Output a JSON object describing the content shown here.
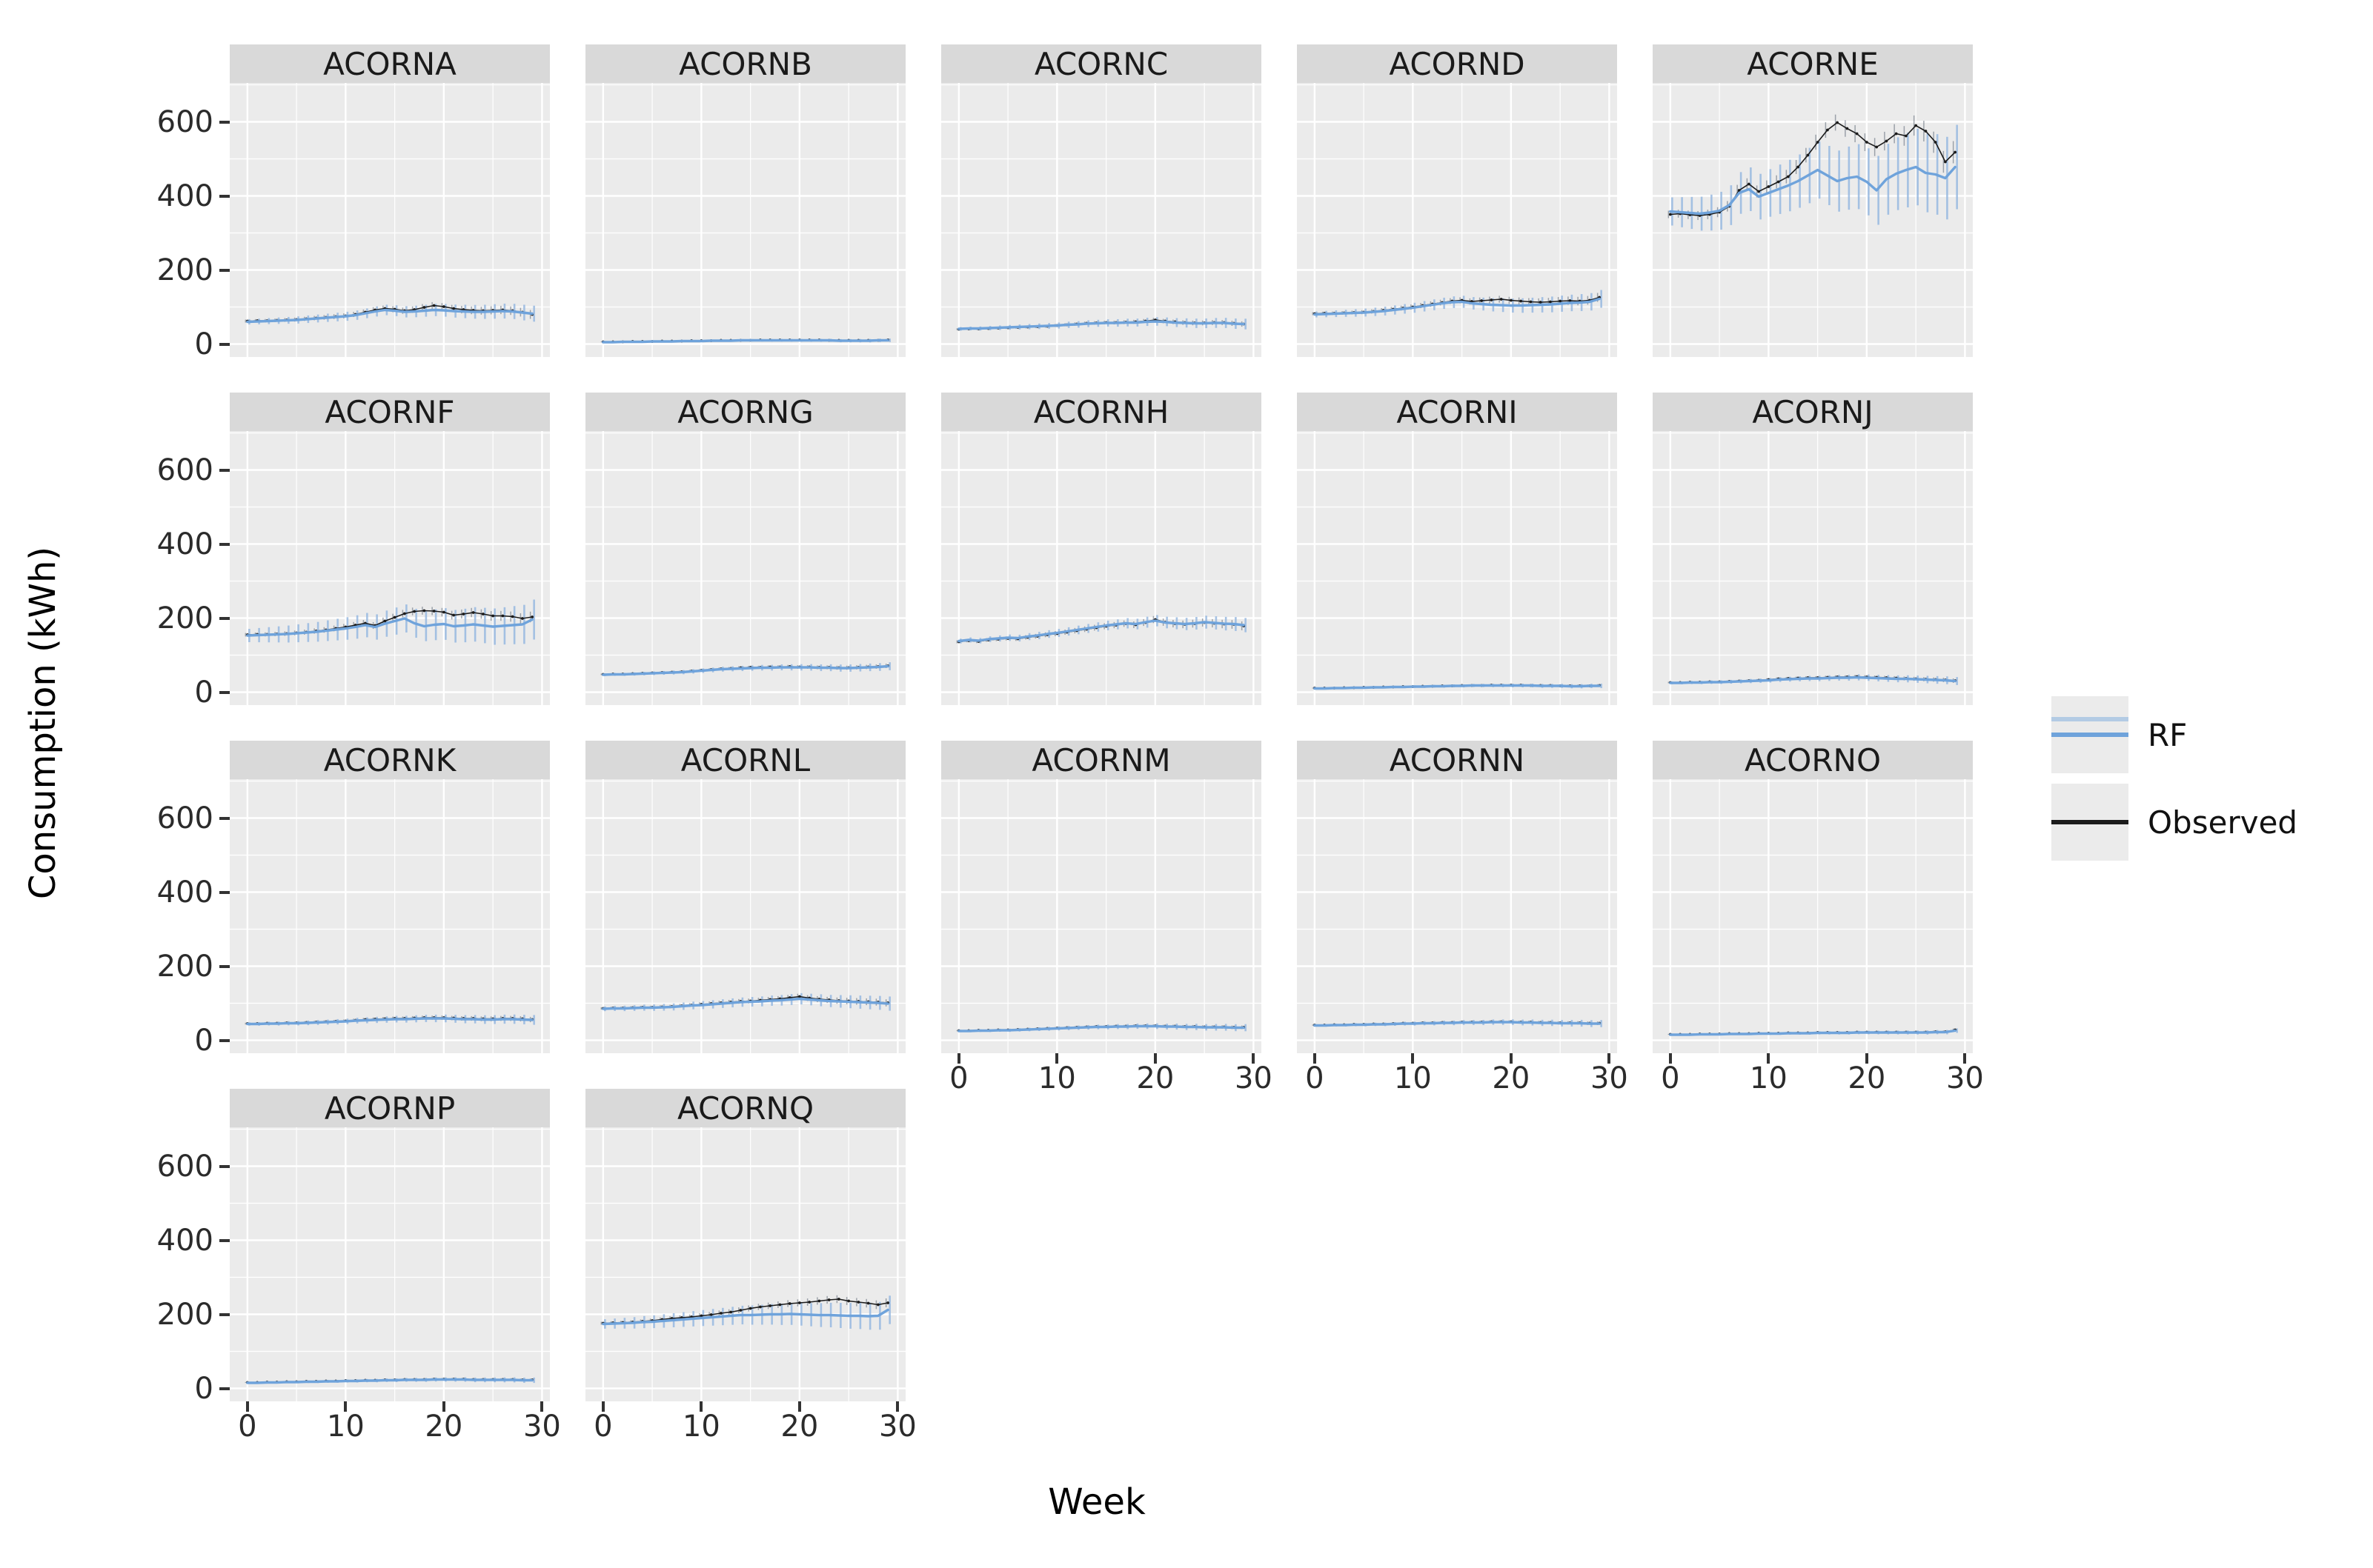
{
  "figure": {
    "x_axis_title": "Week",
    "y_axis_title": "Consumption (kWh)"
  },
  "legend": {
    "items": [
      {
        "label": "RF",
        "color": "#6FA3DB"
      },
      {
        "label": "Observed",
        "color": "#1B1B1B"
      }
    ]
  },
  "colors": {
    "panel_bg": "#EBEBEB",
    "strip_bg": "#D9D9D9",
    "grid": "#FFFFFF",
    "rf_line": "#6FA3DB",
    "rf_errbar": "rgba(150,185,225,0.85)",
    "observed_line": "#1B1B1B",
    "observed_errbar": "rgba(90,100,115,0.55)",
    "tick_text": "#2B2B2B"
  },
  "chart_data": {
    "type": "line",
    "title": "",
    "xlabel": "Week",
    "ylabel": "Consumption (kWh)",
    "facet_layout": {
      "columns": 5,
      "rows": 4
    },
    "x": [
      0,
      1,
      2,
      3,
      4,
      5,
      6,
      7,
      8,
      9,
      10,
      11,
      12,
      13,
      14,
      15,
      16,
      17,
      18,
      19,
      20,
      21,
      22,
      23,
      24,
      25,
      26,
      27,
      28,
      29
    ],
    "xlim": [
      0,
      30
    ],
    "ylim": [
      0,
      650
    ],
    "x_ticks": [
      0,
      10,
      20,
      30
    ],
    "y_ticks": [
      0,
      200,
      400,
      600
    ],
    "x_minor_ticks": [
      5,
      15,
      25
    ],
    "y_minor_ticks": [
      100,
      300,
      500,
      700
    ],
    "grid": true,
    "legend_position": "right",
    "series_names": [
      "RF",
      "Observed"
    ],
    "panels": [
      {
        "name": "ACORNA",
        "rf": [
          60,
          61,
          62,
          63,
          64,
          65,
          67,
          69,
          71,
          73,
          75,
          78,
          83,
          88,
          92,
          90,
          87,
          88,
          90,
          92,
          91,
          89,
          88,
          87,
          87,
          88,
          89,
          88,
          85,
          82
        ],
        "observed": [
          62,
          63,
          63,
          64,
          65,
          66,
          68,
          70,
          72,
          74,
          76,
          80,
          86,
          92,
          96,
          94,
          90,
          93,
          99,
          104,
          101,
          96,
          93,
          91,
          90,
          91,
          92,
          90,
          86,
          80
        ],
        "rf_err": 18,
        "obs_err": 10
      },
      {
        "name": "ACORNB",
        "rf": [
          5,
          5,
          6,
          6,
          6,
          7,
          7,
          7,
          8,
          8,
          8,
          9,
          9,
          9,
          10,
          10,
          10,
          10,
          10,
          10,
          10,
          10,
          10,
          10,
          9,
          9,
          9,
          9,
          10,
          10
        ],
        "observed": [
          6,
          6,
          6,
          7,
          7,
          7,
          8,
          8,
          8,
          9,
          9,
          9,
          10,
          10,
          10,
          10,
          11,
          11,
          11,
          11,
          11,
          11,
          11,
          10,
          10,
          10,
          10,
          10,
          10,
          11
        ],
        "rf_err": 4,
        "obs_err": 2
      },
      {
        "name": "ACORNC",
        "rf": [
          41,
          42,
          42,
          43,
          44,
          45,
          46,
          47,
          48,
          49,
          50,
          52,
          53,
          55,
          56,
          57,
          57,
          58,
          58,
          60,
          61,
          60,
          58,
          57,
          56,
          56,
          57,
          57,
          55,
          54
        ],
        "observed": [
          40,
          41,
          41,
          42,
          43,
          44,
          45,
          46,
          47,
          48,
          50,
          52,
          54,
          56,
          57,
          58,
          58,
          59,
          60,
          62,
          65,
          62,
          60,
          58,
          57,
          57,
          58,
          58,
          56,
          54
        ],
        "rf_err": 12,
        "obs_err": 6
      },
      {
        "name": "ACORND",
        "rf": [
          80,
          81,
          82,
          83,
          84,
          85,
          87,
          89,
          92,
          95,
          98,
          102,
          106,
          110,
          113,
          114,
          110,
          108,
          106,
          105,
          104,
          104,
          105,
          106,
          107,
          109,
          111,
          112,
          114,
          122
        ],
        "observed": [
          82,
          83,
          83,
          84,
          85,
          86,
          88,
          91,
          94,
          97,
          100,
          104,
          108,
          112,
          116,
          118,
          115,
          117,
          119,
          121,
          118,
          116,
          114,
          113,
          114,
          116,
          117,
          116,
          118,
          126
        ],
        "rf_err": 20,
        "obs_err": 10
      },
      {
        "name": "ACORNE",
        "rf": [
          358,
          356,
          354,
          352,
          355,
          360,
          375,
          408,
          418,
          398,
          408,
          418,
          428,
          440,
          455,
          470,
          455,
          440,
          448,
          452,
          438,
          415,
          445,
          460,
          470,
          478,
          462,
          458,
          448,
          478
        ],
        "observed": [
          350,
          352,
          349,
          347,
          350,
          356,
          372,
          415,
          432,
          412,
          425,
          438,
          452,
          478,
          510,
          545,
          578,
          598,
          582,
          568,
          545,
          532,
          548,
          568,
          562,
          590,
          575,
          545,
          492,
          518
        ],
        "rf_err": 95,
        "obs_err": 25
      },
      {
        "name": "ACORNF",
        "rf": [
          153,
          154,
          155,
          156,
          157,
          159,
          161,
          163,
          166,
          169,
          172,
          176,
          181,
          176,
          185,
          192,
          199,
          186,
          178,
          182,
          184,
          178,
          180,
          183,
          180,
          177,
          179,
          181,
          183,
          196
        ],
        "observed": [
          155,
          156,
          156,
          157,
          158,
          160,
          162,
          165,
          168,
          172,
          176,
          181,
          186,
          180,
          192,
          202,
          212,
          218,
          220,
          219,
          216,
          208,
          211,
          215,
          211,
          206,
          206,
          204,
          199,
          203
        ],
        "rf_err": 45,
        "obs_err": 12
      },
      {
        "name": "ACORNG",
        "rf": [
          47,
          48,
          48,
          49,
          50,
          51,
          52,
          53,
          54,
          56,
          58,
          60,
          62,
          63,
          64,
          65,
          66,
          66,
          67,
          67,
          67,
          67,
          66,
          66,
          65,
          65,
          66,
          67,
          68,
          70
        ],
        "observed": [
          48,
          49,
          49,
          50,
          51,
          52,
          53,
          54,
          55,
          57,
          59,
          61,
          63,
          64,
          66,
          67,
          67,
          68,
          68,
          69,
          68,
          68,
          67,
          67,
          66,
          66,
          67,
          68,
          69,
          71
        ],
        "rf_err": 9,
        "obs_err": 5
      },
      {
        "name": "ACORNH",
        "rf": [
          138,
          141,
          139,
          143,
          145,
          147,
          146,
          150,
          153,
          157,
          160,
          164,
          168,
          172,
          176,
          180,
          183,
          186,
          184,
          189,
          193,
          188,
          186,
          184,
          186,
          189,
          187,
          185,
          184,
          181
        ],
        "observed": [
          136,
          139,
          137,
          141,
          143,
          145,
          144,
          148,
          151,
          155,
          158,
          162,
          166,
          170,
          174,
          178,
          181,
          185,
          182,
          188,
          196,
          189,
          185,
          183,
          185,
          188,
          186,
          184,
          183,
          179
        ],
        "rf_err": 16,
        "obs_err": 10
      },
      {
        "name": "ACORNI",
        "rf": [
          10,
          10,
          11,
          11,
          12,
          12,
          13,
          13,
          14,
          14,
          15,
          15,
          16,
          16,
          17,
          17,
          18,
          18,
          18,
          18,
          18,
          18,
          18,
          17,
          17,
          17,
          16,
          16,
          17,
          17
        ],
        "observed": [
          11,
          11,
          11,
          12,
          12,
          13,
          13,
          14,
          14,
          15,
          15,
          16,
          16,
          17,
          17,
          18,
          18,
          18,
          19,
          19,
          19,
          19,
          18,
          18,
          18,
          17,
          17,
          17,
          17,
          18
        ],
        "rf_err": 5,
        "obs_err": 3
      },
      {
        "name": "ACORNJ",
        "rf": [
          25,
          25,
          26,
          26,
          27,
          27,
          28,
          29,
          30,
          31,
          32,
          34,
          35,
          36,
          37,
          37,
          38,
          39,
          39,
          40,
          39,
          38,
          37,
          36,
          36,
          35,
          34,
          33,
          32,
          30
        ],
        "observed": [
          26,
          26,
          27,
          27,
          28,
          28,
          29,
          30,
          31,
          32,
          34,
          36,
          37,
          38,
          39,
          39,
          40,
          41,
          41,
          42,
          41,
          40,
          39,
          38,
          37,
          36,
          35,
          34,
          33,
          31
        ],
        "rf_err": 9,
        "obs_err": 5
      },
      {
        "name": "ACORNK",
        "rf": [
          44,
          44,
          45,
          45,
          46,
          46,
          47,
          48,
          49,
          50,
          51,
          53,
          54,
          55,
          56,
          57,
          57,
          58,
          59,
          59,
          59,
          58,
          57,
          57,
          56,
          56,
          57,
          57,
          56,
          55
        ],
        "observed": [
          45,
          45,
          46,
          46,
          47,
          47,
          48,
          49,
          50,
          51,
          52,
          54,
          56,
          57,
          58,
          59,
          59,
          60,
          61,
          61,
          61,
          60,
          59,
          59,
          58,
          58,
          59,
          59,
          58,
          56
        ],
        "rf_err": 11,
        "obs_err": 6
      },
      {
        "name": "ACORNL",
        "rf": [
          85,
          86,
          86,
          87,
          88,
          88,
          89,
          90,
          92,
          94,
          95,
          97,
          99,
          101,
          103,
          104,
          105,
          107,
          108,
          110,
          112,
          110,
          108,
          106,
          105,
          104,
          103,
          102,
          101,
          99
        ],
        "observed": [
          86,
          87,
          87,
          88,
          89,
          89,
          90,
          91,
          93,
          95,
          97,
          99,
          101,
          103,
          105,
          106,
          108,
          110,
          112,
          115,
          118,
          114,
          111,
          109,
          107,
          106,
          105,
          104,
          103,
          101
        ],
        "rf_err": 16,
        "obs_err": 8
      },
      {
        "name": "ACORNM",
        "rf": [
          25,
          25,
          26,
          26,
          27,
          27,
          28,
          29,
          30,
          31,
          32,
          33,
          34,
          35,
          36,
          36,
          37,
          37,
          38,
          38,
          38,
          37,
          37,
          36,
          36,
          35,
          35,
          35,
          34,
          34
        ],
        "observed": [
          26,
          26,
          27,
          27,
          28,
          28,
          29,
          30,
          31,
          32,
          33,
          34,
          35,
          36,
          37,
          37,
          38,
          38,
          39,
          39,
          39,
          38,
          38,
          37,
          37,
          36,
          36,
          36,
          35,
          35
        ],
        "rf_err": 8,
        "obs_err": 4
      },
      {
        "name": "ACORNN",
        "rf": [
          40,
          40,
          41,
          41,
          42,
          42,
          43,
          43,
          44,
          45,
          45,
          46,
          46,
          47,
          47,
          48,
          48,
          48,
          49,
          49,
          49,
          48,
          48,
          47,
          47,
          46,
          46,
          46,
          45,
          45
        ],
        "observed": [
          41,
          41,
          42,
          42,
          43,
          43,
          44,
          44,
          45,
          46,
          46,
          47,
          47,
          48,
          48,
          49,
          49,
          49,
          50,
          50,
          50,
          49,
          49,
          48,
          48,
          47,
          47,
          47,
          46,
          46
        ],
        "rf_err": 8,
        "obs_err": 4
      },
      {
        "name": "ACORNO",
        "rf": [
          15,
          15,
          15,
          16,
          16,
          16,
          17,
          17,
          17,
          18,
          18,
          18,
          19,
          19,
          19,
          20,
          20,
          20,
          20,
          21,
          21,
          21,
          21,
          21,
          21,
          21,
          21,
          22,
          22,
          26
        ],
        "observed": [
          16,
          16,
          16,
          17,
          17,
          17,
          18,
          18,
          18,
          19,
          19,
          19,
          20,
          20,
          20,
          21,
          21,
          21,
          21,
          22,
          22,
          22,
          22,
          22,
          22,
          22,
          22,
          23,
          23,
          28
        ],
        "rf_err": 5,
        "obs_err": 3
      },
      {
        "name": "ACORNP",
        "rf": [
          15,
          15,
          16,
          16,
          17,
          17,
          18,
          18,
          19,
          19,
          20,
          20,
          21,
          21,
          22,
          22,
          23,
          23,
          23,
          24,
          24,
          24,
          24,
          23,
          23,
          23,
          23,
          23,
          22,
          22
        ],
        "observed": [
          16,
          16,
          17,
          17,
          18,
          18,
          19,
          19,
          20,
          20,
          21,
          21,
          22,
          22,
          23,
          23,
          24,
          24,
          24,
          25,
          25,
          25,
          25,
          24,
          24,
          24,
          24,
          24,
          23,
          23
        ],
        "rf_err": 6,
        "obs_err": 3
      },
      {
        "name": "ACORNQ",
        "rf": [
          174,
          175,
          176,
          177,
          179,
          180,
          182,
          184,
          186,
          188,
          190,
          192,
          194,
          196,
          198,
          198,
          199,
          200,
          200,
          201,
          200,
          199,
          198,
          198,
          197,
          196,
          196,
          195,
          196,
          212
        ],
        "observed": [
          176,
          177,
          178,
          179,
          181,
          183,
          186,
          189,
          191,
          193,
          196,
          199,
          203,
          206,
          211,
          216,
          220,
          223,
          226,
          229,
          231,
          233,
          236,
          239,
          241,
          236,
          233,
          230,
          226,
          231
        ],
        "rf_err": 32,
        "obs_err": 10
      }
    ]
  }
}
